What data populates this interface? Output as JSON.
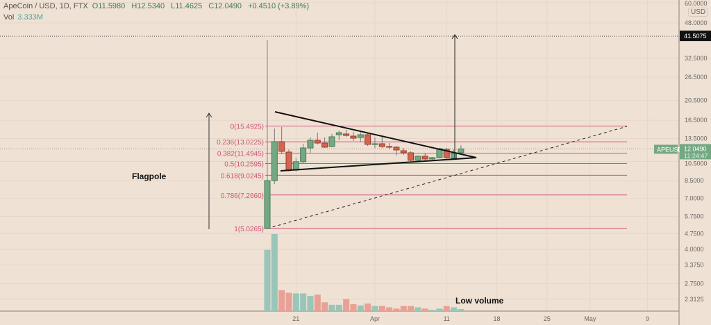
{
  "header": {
    "symbol": "ApeCoin / USD, 1D, FTX",
    "open": "O11.5980",
    "high": "H12.5340",
    "low": "L11.4625",
    "close": "C12.0490",
    "change": "+0.4510 (+3.89%)",
    "vol_label": "Vol",
    "vol_value": "3.333M"
  },
  "price_axis": {
    "currency": "USD",
    "target_label": "41.5075",
    "symbol_tag": "APEUSD",
    "last_price": "12.0490",
    "countdown": "11:24:47"
  },
  "annotations": {
    "flagpole": "Flagpole",
    "low_volume": "Low volume"
  },
  "colors": {
    "up": "#74a883",
    "down": "#cf6650",
    "fib": "#d0527a",
    "vol_up": "#9ac5b9",
    "vol_down": "#e7a196"
  },
  "chart_data": {
    "type": "candlestick",
    "title": "ApeCoin / USD, 1D, FTX",
    "scale": "log",
    "y_ticks": [
      60,
      48,
      32.5,
      26.5,
      20.5,
      16.5,
      13.5,
      10.5,
      8.5,
      7,
      5.75,
      4.75,
      4,
      3.375,
      2.75,
      2.3125
    ],
    "y_tick_labels": [
      "60.0000",
      "48.0000",
      "32.5000",
      "26.5000",
      "20.5000",
      "16.5000",
      "13.5000",
      "10.5000",
      "8.5000",
      "7.0000",
      "5.7500",
      "4.7500",
      "4.0000",
      "3.3750",
      "2.7500",
      "2.3125"
    ],
    "x_labels": [
      {
        "label": "21",
        "day": 4
      },
      {
        "label": "Apr",
        "day": 15
      },
      {
        "label": "11",
        "day": 25
      },
      {
        "label": "18",
        "day": 32
      },
      {
        "label": "25",
        "day": 39
      },
      {
        "label": "May",
        "day": 45
      },
      {
        "label": "9",
        "day": 53
      }
    ],
    "candles": [
      {
        "o": 5.03,
        "h": 8.6,
        "l": 5.0,
        "c": 8.51
      },
      {
        "o": 8.51,
        "h": 15.08,
        "l": 8.2,
        "c": 13.05
      },
      {
        "o": 13.05,
        "h": 15.31,
        "l": 11.38,
        "c": 11.73
      },
      {
        "o": 11.64,
        "h": 12.0,
        "l": 9.4,
        "c": 9.55
      },
      {
        "o": 9.55,
        "h": 10.87,
        "l": 9.4,
        "c": 10.47
      },
      {
        "o": 10.47,
        "h": 12.75,
        "l": 10.31,
        "c": 12.18
      },
      {
        "o": 12.18,
        "h": 13.66,
        "l": 11.55,
        "c": 13.25
      },
      {
        "o": 13.25,
        "h": 14.4,
        "l": 12.66,
        "c": 12.85
      },
      {
        "o": 12.85,
        "h": 13.66,
        "l": 12.18,
        "c": 12.28
      },
      {
        "o": 12.37,
        "h": 14.19,
        "l": 12.28,
        "c": 13.76
      },
      {
        "o": 14.08,
        "h": 14.74,
        "l": 13.25,
        "c": 14.4
      },
      {
        "o": 14.19,
        "h": 14.85,
        "l": 13.76,
        "c": 13.97
      },
      {
        "o": 13.87,
        "h": 14.51,
        "l": 13.15,
        "c": 13.55
      },
      {
        "o": 13.66,
        "h": 14.51,
        "l": 13.05,
        "c": 14.08
      },
      {
        "o": 14.08,
        "h": 14.29,
        "l": 12.46,
        "c": 12.66
      },
      {
        "o": 12.66,
        "h": 13.66,
        "l": 12.18,
        "c": 12.75
      },
      {
        "o": 12.75,
        "h": 13.76,
        "l": 12.18,
        "c": 12.37
      },
      {
        "o": 12.37,
        "h": 12.85,
        "l": 12.0,
        "c": 12.3
      },
      {
        "o": 12.28,
        "h": 12.46,
        "l": 11.21,
        "c": 11.91
      },
      {
        "o": 11.82,
        "h": 12.18,
        "l": 11.29,
        "c": 11.55
      },
      {
        "o": 11.55,
        "h": 11.73,
        "l": 10.55,
        "c": 10.63
      },
      {
        "o": 10.63,
        "h": 11.21,
        "l": 10.55,
        "c": 11.12
      },
      {
        "o": 11.12,
        "h": 11.55,
        "l": 10.55,
        "c": 10.79
      },
      {
        "o": 10.79,
        "h": 11.04,
        "l": 10.71,
        "c": 10.95
      },
      {
        "o": 10.95,
        "h": 12.18,
        "l": 10.87,
        "c": 12.09
      },
      {
        "o": 12.0,
        "h": 12.18,
        "l": 10.79,
        "c": 10.95
      },
      {
        "o": 10.87,
        "h": 12.0,
        "l": 10.71,
        "c": 11.46
      },
      {
        "o": 11.55,
        "h": 12.53,
        "l": 11.46,
        "c": 12.05
      }
    ],
    "volume_millions": [
      97,
      122,
      33,
      29,
      28,
      28,
      24,
      26,
      14,
      10,
      10,
      19,
      11,
      9,
      12,
      8,
      8,
      6,
      4,
      8,
      8,
      6,
      4,
      2,
      4,
      8,
      6,
      3.3
    ],
    "fib_levels": [
      {
        "label": "0(15.4925)",
        "price": 15.4925
      },
      {
        "label": "0.236(13.0225)",
        "price": 13.0225
      },
      {
        "label": "0.382(11.4945)",
        "price": 11.4945
      },
      {
        "label": "0.5(10.2595)",
        "price": 10.2595
      },
      {
        "label": "0.618(9.0245)",
        "price": 9.0245
      },
      {
        "label": "0.786(7.2660)",
        "price": 7.266
      },
      {
        "label": "1(5.0265)",
        "price": 5.0265
      }
    ],
    "target_price": 41.5075,
    "last_price": 12.049
  }
}
